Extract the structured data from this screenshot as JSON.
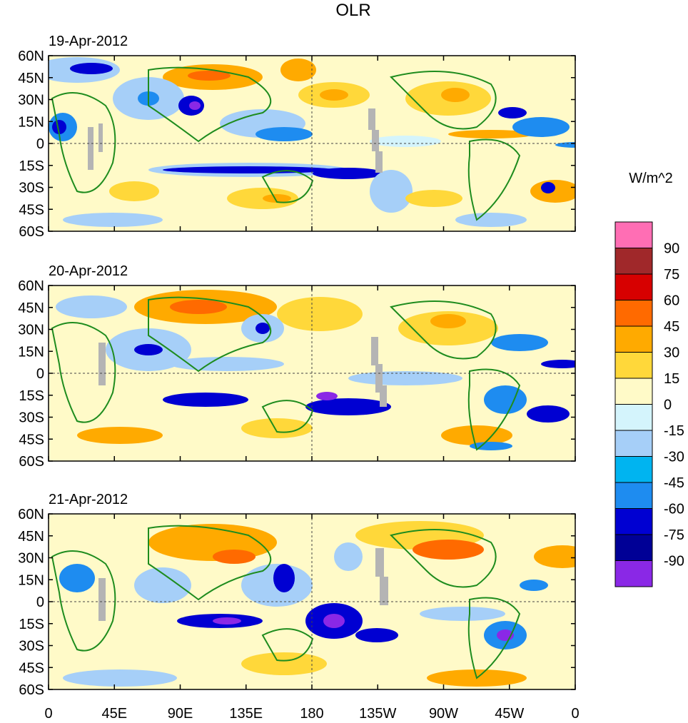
{
  "title": "OLR",
  "panels": [
    {
      "date": "19-Apr-2012"
    },
    {
      "date": "20-Apr-2012"
    },
    {
      "date": "21-Apr-2012"
    }
  ],
  "lat_ticks": [
    "60N",
    "45N",
    "30N",
    "15N",
    "0",
    "15S",
    "30S",
    "45S",
    "60S"
  ],
  "lon_ticks": [
    "0",
    "45E",
    "90E",
    "135E",
    "180",
    "135W",
    "90W",
    "45W",
    "0"
  ],
  "legend": {
    "unit": "W/m^2",
    "colors": [
      "#ff6eb4",
      "#a0282a",
      "#d70000",
      "#ff6a00",
      "#ffaa00",
      "#ffd83a",
      "#fffac8",
      "#d4f4fc",
      "#a6cff8",
      "#00b4f0",
      "#1e8cf0",
      "#0000d2",
      "#000096",
      "#8a28e6"
    ],
    "labels": [
      "90",
      "75",
      "60",
      "45",
      "30",
      "15",
      "0",
      "-15",
      "-30",
      "-45",
      "-60",
      "-75",
      "-90"
    ]
  },
  "colors": {
    "land_outline": "#1e8c1e",
    "missing_data": "#b4b4b4",
    "background": "#fffac8"
  }
}
